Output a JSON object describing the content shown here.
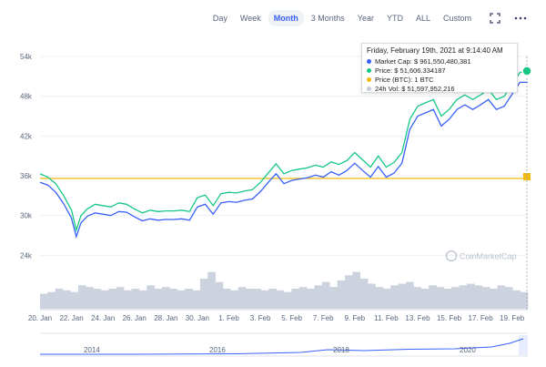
{
  "toolbar": {
    "ranges": [
      "Day",
      "Week",
      "Month",
      "3 Months",
      "Year",
      "YTD",
      "ALL",
      "Custom"
    ],
    "active": "Month"
  },
  "icons": {
    "fullscreen": "fullscreen-icon",
    "more": "more-icon"
  },
  "watermark": "CoinMarketCap",
  "tooltip": {
    "title": "Friday, February 19th, 2021 at 9:14:40 AM",
    "rows": [
      {
        "label": "Market Cap:",
        "value": "$ 961,550,480,381",
        "color": "#3861fb"
      },
      {
        "label": "Price:",
        "value": "$ 51,606.334187",
        "color": "#16c784"
      },
      {
        "label": "Price (BTC):",
        "value": "1 BTC",
        "color": "#f0b90b"
      },
      {
        "label": "24h Vol:",
        "value": "$ 51,597,952,216",
        "color": "#c3cad6"
      }
    ]
  },
  "colors": {
    "price": "#16c784",
    "market_cap": "#3861fb",
    "baseline": "#f0b90b",
    "volume": "#ccd3df",
    "grid": "#edf0f4"
  },
  "chart_data": {
    "type": "line",
    "ylim": [
      18000,
      54000
    ],
    "yticks": [
      "24k",
      "30k",
      "36k",
      "42k",
      "48k",
      "54k"
    ],
    "ytick_values": [
      24000,
      30000,
      36000,
      42000,
      48000,
      54000
    ],
    "xticks": [
      "20. Jan",
      "22. Jan",
      "24. Jan",
      "26. Jan",
      "28. Jan",
      "30. Jan",
      "1. Feb",
      "3. Feb",
      "5. Feb",
      "7. Feb",
      "9. Feb",
      "11. Feb",
      "13. Feb",
      "15. Feb",
      "17. Feb",
      "19. Feb"
    ],
    "baseline": 35600,
    "x_days": [
      0,
      0.5,
      1,
      1.5,
      2,
      2.3,
      2.6,
      3,
      3.5,
      4,
      4.5,
      5,
      5.5,
      6,
      6.5,
      7,
      7.5,
      8,
      8.5,
      9,
      9.5,
      10,
      10.5,
      11,
      11.5,
      12,
      12.5,
      13,
      13.5,
      14,
      14.5,
      15,
      15.5,
      16,
      16.5,
      17,
      17.5,
      18,
      18.5,
      19,
      19.5,
      20,
      20.5,
      21,
      21.5,
      22,
      22.5,
      23,
      23.5,
      24,
      24.5,
      25,
      25.5,
      26,
      26.5,
      27,
      27.5,
      28,
      28.5,
      29,
      29.5,
      30,
      30.5,
      31
    ],
    "series": [
      {
        "values": [
          36300,
          35800,
          34800,
          33000,
          30800,
          27800,
          30000,
          31000,
          31700,
          31500,
          31300,
          31900,
          31700,
          31000,
          30400,
          30800,
          30600,
          30700,
          30700,
          30800,
          30600,
          32700,
          33100,
          31500,
          33300,
          33500,
          33400,
          33700,
          33900,
          35000,
          36400,
          37800,
          36300,
          36800,
          37000,
          37200,
          37600,
          37300,
          38100,
          37700,
          38300,
          39500,
          38400,
          37300,
          39000,
          37300,
          38000,
          39500,
          44500,
          46500,
          47000,
          47500,
          45000,
          46000,
          47500,
          48200,
          47500,
          48200,
          49000,
          47500,
          48000,
          49800,
          51600,
          51606
        ]
      },
      {
        "values": [
          35000,
          34600,
          33500,
          31800,
          29600,
          26800,
          28900,
          29900,
          30400,
          30200,
          30000,
          30600,
          30500,
          29800,
          29200,
          29500,
          29300,
          29400,
          29400,
          29500,
          29300,
          31300,
          31700,
          30200,
          31900,
          32100,
          32000,
          32300,
          32500,
          33600,
          35000,
          36300,
          34800,
          35300,
          35500,
          35700,
          36100,
          35800,
          36600,
          36100,
          36800,
          37900,
          36800,
          35800,
          37400,
          35800,
          36400,
          37900,
          43000,
          45000,
          45500,
          46000,
          43500,
          44500,
          46000,
          46700,
          46000,
          46700,
          47500,
          46000,
          46500,
          48300,
          50100,
          50100
        ]
      }
    ],
    "volume": [
      9,
      10,
      12,
      11,
      10,
      14,
      13,
      12,
      11,
      12,
      13,
      11,
      12,
      11,
      14,
      12,
      13,
      12,
      11,
      12,
      11,
      18,
      22,
      16,
      12,
      11,
      13,
      12,
      12,
      11,
      12,
      11,
      10,
      12,
      13,
      12,
      14,
      16,
      13,
      17,
      20,
      22,
      18,
      15,
      13,
      12,
      14,
      15,
      16,
      13,
      12,
      14,
      13,
      12,
      13,
      14,
      15,
      14,
      13,
      12,
      14,
      13,
      11,
      10
    ]
  }
}
